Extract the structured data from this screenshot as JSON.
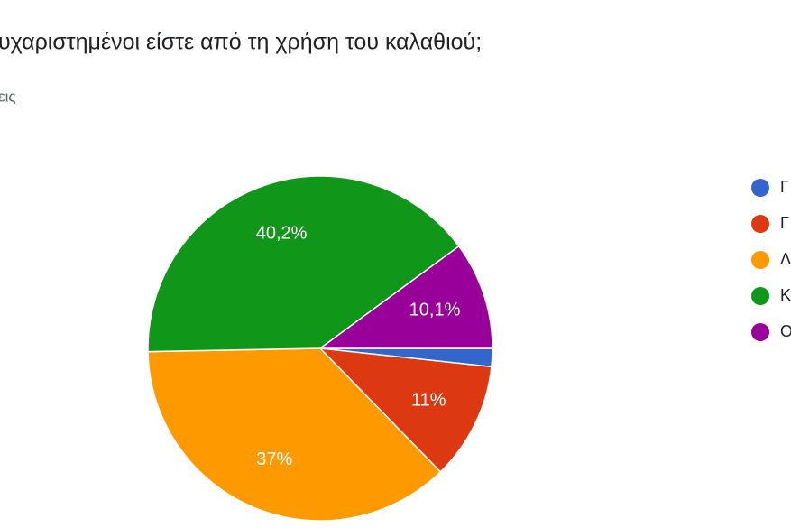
{
  "chart_data": {
    "type": "pie",
    "title": "υχαριστημένοι είστε από τη χρήση του καλαθιού;",
    "subtitle": "εις",
    "categories": [
      "Γ",
      "Γ",
      "Λ",
      "Κ",
      "Ο"
    ],
    "values": [
      1.7,
      11,
      37,
      40.2,
      10.1
    ],
    "value_labels": [
      null,
      "11%",
      "37%",
      "40,2%",
      "10,1%"
    ],
    "colors": [
      "#3366cc",
      "#dc3912",
      "#ff9900",
      "#109618",
      "#990099"
    ],
    "legend": "right"
  }
}
